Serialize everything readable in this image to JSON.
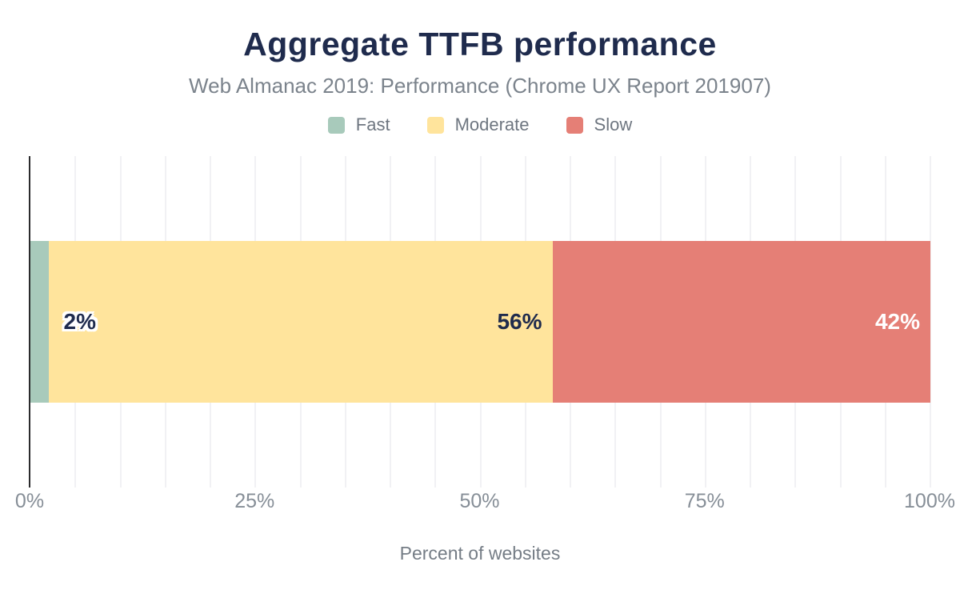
{
  "chart_data": {
    "type": "bar",
    "orientation": "horizontal",
    "stacked": true,
    "title": "Aggregate TTFB performance",
    "subtitle": "Web Almanac 2019: Performance (Chrome UX Report 201907)",
    "xlabel": "Percent of websites",
    "xlim": [
      0,
      100
    ],
    "x_ticks": [
      "0%",
      "25%",
      "50%",
      "75%",
      "100%"
    ],
    "grid": {
      "vertical": true,
      "interval": 5,
      "color": "#f1f1f4"
    },
    "legend_position": "top",
    "categories": [
      "TTFB"
    ],
    "series": [
      {
        "name": "Fast",
        "value": 2,
        "label": "2%",
        "color": "#a8cabb",
        "label_color": "#1f2b4d",
        "label_halo": true,
        "label_placement": "outside-right"
      },
      {
        "name": "Moderate",
        "value": 56,
        "label": "56%",
        "color": "#ffe49c",
        "label_color": "#1f2b4d",
        "label_halo": false,
        "label_placement": "inside-right"
      },
      {
        "name": "Slow",
        "value": 42,
        "label": "42%",
        "color": "#e57f76",
        "label_color": "#ffffff",
        "label_halo": false,
        "label_placement": "inside-right"
      }
    ]
  },
  "colors": {
    "title": "#1f2b4d",
    "subtitle": "#7b838c",
    "legend_text": "#6e7680",
    "tick_text": "#868e97",
    "axis_line": "#2b2b2d",
    "background": "#ffffff"
  }
}
